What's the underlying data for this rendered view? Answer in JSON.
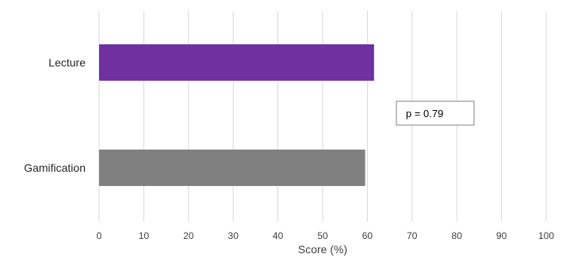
{
  "chart_data": {
    "type": "bar",
    "orientation": "horizontal",
    "categories": [
      "Lecture",
      "Gamification"
    ],
    "values": [
      61.5,
      59.5
    ],
    "colors": [
      "#7030a0",
      "#808080"
    ],
    "xlabel": "Score (%)",
    "ylabel": "",
    "xlim": [
      0,
      100
    ],
    "x_ticks": [
      0,
      10,
      20,
      30,
      40,
      50,
      60,
      70,
      80,
      90,
      100
    ],
    "grid": true,
    "annotation": "p = 0.79"
  }
}
